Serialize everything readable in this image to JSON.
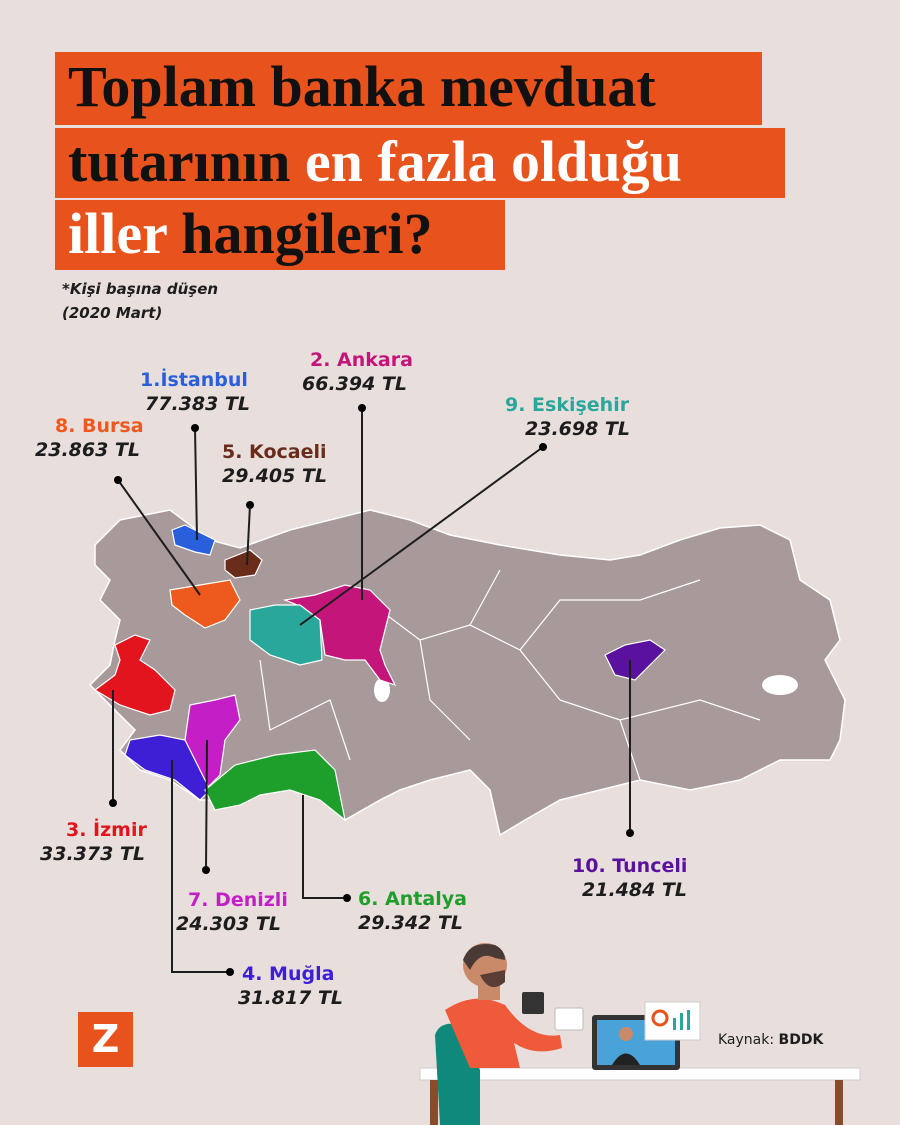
{
  "title": {
    "lines": [
      {
        "segments": [
          "Toplam banka mevduat"
        ]
      },
      {
        "segments": [
          "tutarının",
          "en fazla olduğu"
        ]
      },
      {
        "segments": [
          "iller",
          "hangileri?"
        ]
      }
    ]
  },
  "subtitle": [
    "*Kişi başına düşen",
    "(2020 Mart)"
  ],
  "provinces": [
    {
      "name": "1.İstanbul",
      "value": "77.383 TL"
    },
    {
      "name": "2. Ankara",
      "value": "66.394 TL"
    },
    {
      "name": "3. İzmir",
      "value": "33.373 TL"
    },
    {
      "name": "4. Muğla",
      "value": "31.817 TL"
    },
    {
      "name": "5. Kocaeli",
      "value": "29.405 TL"
    },
    {
      "name": "6. Antalya",
      "value": "29.342 TL"
    },
    {
      "name": "7. Denizli",
      "value": "24.303 TL"
    },
    {
      "name": "8. Bursa",
      "value": "23.863 TL"
    },
    {
      "name": "9. Eskişehir",
      "value": "23.698 TL"
    },
    {
      "name": "10. Tunceli",
      "value": "21.484 TL"
    }
  ],
  "logo": "Z",
  "source": {
    "label": "Kaynak:",
    "value": "BDDK"
  }
}
